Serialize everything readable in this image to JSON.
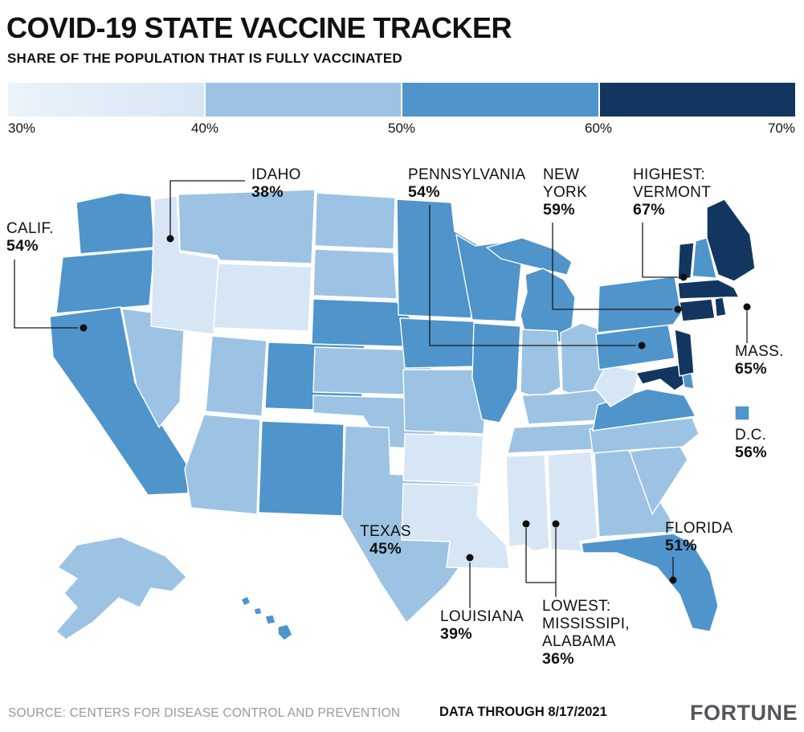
{
  "header": {
    "title": "COVID-19 STATE VACCINE TRACKER",
    "subtitle": "SHARE OF THE POPULATION THAT IS FULLY VACCINATED"
  },
  "legend": {
    "tick_labels": [
      "30%",
      "40%",
      "50%",
      "60%",
      "70%"
    ],
    "colors": [
      "#d7e6f5",
      "#9cc3e4",
      "#4f94cb",
      "#12365f"
    ]
  },
  "annotations": [
    {
      "id": "idaho",
      "lines": [
        "IDAHO"
      ],
      "value": "38%"
    },
    {
      "id": "calif",
      "lines": [
        "CALIF."
      ],
      "value": "54%"
    },
    {
      "id": "pennsylvania",
      "lines": [
        "PENNSYLVANIA"
      ],
      "value": "54%"
    },
    {
      "id": "new-york",
      "lines": [
        "NEW",
        "YORK"
      ],
      "value": "59%"
    },
    {
      "id": "vermont",
      "lines": [
        "HIGHEST:",
        "VERMONT"
      ],
      "value": "67%"
    },
    {
      "id": "mass",
      "lines": [
        "MASS."
      ],
      "value": "65%"
    },
    {
      "id": "dc",
      "lines": [
        "D.C."
      ],
      "value": "56%"
    },
    {
      "id": "texas",
      "lines": [
        "TEXAS"
      ],
      "value": "45%"
    },
    {
      "id": "florida",
      "lines": [
        "FLORIDA"
      ],
      "value": "51%"
    },
    {
      "id": "louisiana",
      "lines": [
        "LOUISIANA"
      ],
      "value": "39%"
    },
    {
      "id": "lowest",
      "lines": [
        "LOWEST:",
        "MISSISSIPI,",
        "ALABAMA"
      ],
      "value": "36%"
    }
  ],
  "footer": {
    "source": "SOURCE: CENTERS FOR DISEASE CONTROL AND PREVENTION",
    "data_through": "DATA THROUGH 8/17/2021",
    "brand": "FORTUNE"
  },
  "chart_data": {
    "type": "choropleth",
    "map": "us-states",
    "title": "COVID-19 STATE VACCINE TRACKER",
    "subtitle": "SHARE OF THE POPULATION THAT IS FULLY VACCINATED",
    "unit": "% of population fully vaccinated",
    "color_scale": {
      "ticks": [
        30,
        40,
        50,
        60,
        70
      ],
      "bucket_ranges": [
        "30-40%",
        "40-50%",
        "50-60%",
        "60-70%"
      ],
      "colors": [
        "#d7e6f5",
        "#9cc3e4",
        "#4f94cb",
        "#12365f"
      ]
    },
    "labeled_values": [
      {
        "area": "Idaho",
        "value": 38
      },
      {
        "area": "California",
        "value": 54
      },
      {
        "area": "Pennsylvania",
        "value": 54
      },
      {
        "area": "New York",
        "value": 59
      },
      {
        "area": "Vermont",
        "value": 67,
        "note": "highest"
      },
      {
        "area": "Massachusetts",
        "value": 65
      },
      {
        "area": "District of Columbia",
        "value": 56
      },
      {
        "area": "Texas",
        "value": 45
      },
      {
        "area": "Florida",
        "value": 51
      },
      {
        "area": "Louisiana",
        "value": 39
      },
      {
        "area": "Mississippi",
        "value": 36,
        "note": "lowest"
      },
      {
        "area": "Alabama",
        "value": 36,
        "note": "lowest"
      }
    ],
    "state_color_buckets": {
      "WA": 2,
      "OR": 2,
      "CA": 2,
      "NV": 1,
      "ID": 0,
      "MT": 1,
      "WY": 0,
      "UT": 1,
      "CO": 2,
      "AZ": 1,
      "NM": 2,
      "ND": 1,
      "SD": 1,
      "NE": 2,
      "KS": 1,
      "OK": 1,
      "TX": 1,
      "MN": 2,
      "IA": 2,
      "MO": 1,
      "AR": 0,
      "LA": 0,
      "WI": 2,
      "IL": 2,
      "MI": 2,
      "IN": 1,
      "OH": 1,
      "KY": 1,
      "TN": 1,
      "MS": 0,
      "AL": 0,
      "GA": 1,
      "FL": 2,
      "SC": 1,
      "NC": 1,
      "VA": 2,
      "WV": 0,
      "MD": 3,
      "DE": 2,
      "PA": 2,
      "NJ": 3,
      "NY": 2,
      "CT": 3,
      "RI": 3,
      "MA": 3,
      "VT": 3,
      "NH": 2,
      "ME": 3,
      "AK": 1,
      "HI": 2,
      "DC": 2
    }
  }
}
